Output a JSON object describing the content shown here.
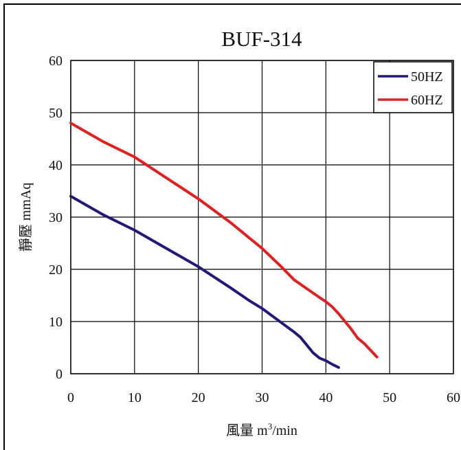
{
  "chart_data": {
    "type": "line",
    "title": "BUF-314",
    "xlabel": "風量 m³/min",
    "xlabel_main": "風量 m",
    "xlabel_sup": "3",
    "xlabel_tail": "/min",
    "ylabel": "靜壓 mmAq",
    "xlim": [
      0,
      60
    ],
    "ylim": [
      0,
      60
    ],
    "x_ticks": [
      0,
      10,
      20,
      30,
      40,
      50,
      60
    ],
    "y_ticks": [
      0,
      10,
      20,
      30,
      40,
      50,
      60
    ],
    "grid": true,
    "legend_position": "top-right",
    "series": [
      {
        "name": "50HZ",
        "color": "#1f1a7a",
        "x": [
          0,
          5,
          10,
          15,
          20,
          25,
          28,
          30,
          35,
          36,
          37,
          38,
          39,
          40,
          41,
          42
        ],
        "y": [
          34,
          30.5,
          27.5,
          24,
          20.5,
          16.5,
          14,
          12.5,
          8,
          7,
          5.5,
          4,
          3,
          2.5,
          1.8,
          1.2
        ]
      },
      {
        "name": "60HZ",
        "color": "#e02020",
        "x": [
          0,
          5,
          10,
          15,
          20,
          25,
          28,
          30,
          33,
          35,
          37,
          39,
          40,
          41,
          42,
          43,
          44,
          45,
          46,
          47,
          48
        ],
        "y": [
          48,
          44.5,
          41.5,
          37.5,
          33.5,
          29,
          26,
          24,
          20.5,
          18,
          16.3,
          14.6,
          13.8,
          12.8,
          11.5,
          10,
          8.5,
          6.8,
          5.8,
          4.5,
          3.2
        ]
      }
    ]
  }
}
